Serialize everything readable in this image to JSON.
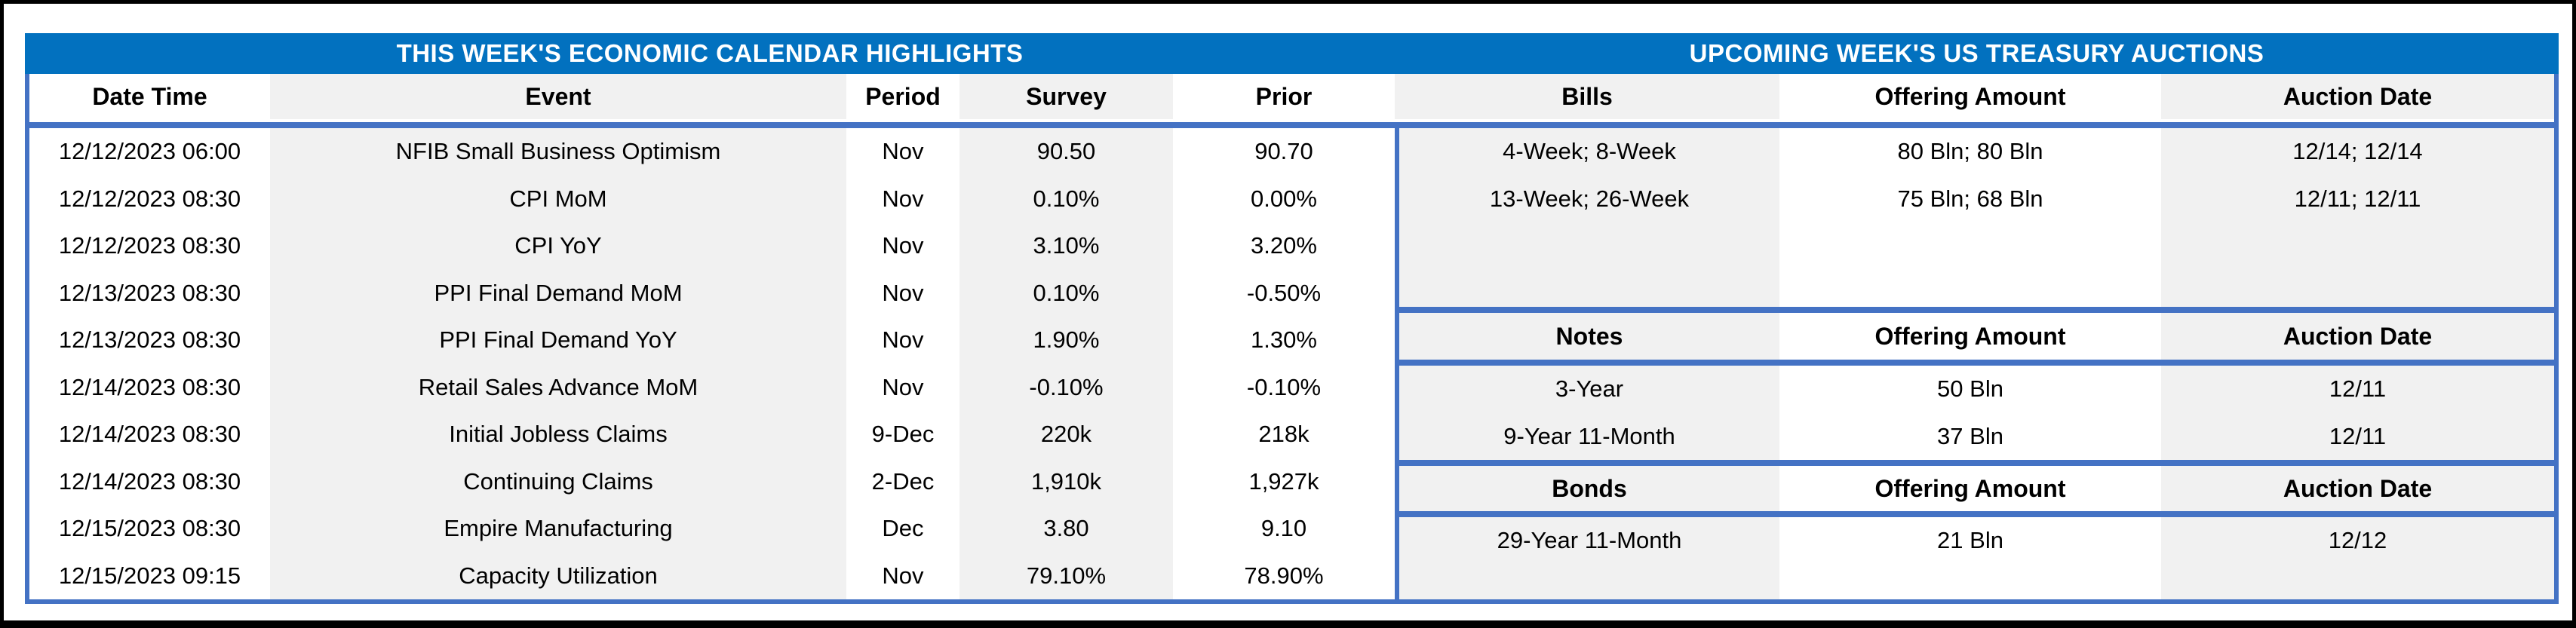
{
  "colors": {
    "band_blue": "#0271BF",
    "border_blue": "#4472C4",
    "stripe_gray": "#F1F1F1",
    "frame_black": "#000000",
    "title_text": "#FFFFFF"
  },
  "calendar": {
    "title": "THIS WEEK'S ECONOMIC CALENDAR HIGHLIGHTS",
    "columns": [
      "Date Time",
      "Event",
      "Period",
      "Survey",
      "Prior"
    ],
    "rows": [
      {
        "date_time": "12/12/2023 06:00",
        "event": "NFIB Small Business Optimism",
        "period": "Nov",
        "survey": "90.50",
        "prior": "90.70"
      },
      {
        "date_time": "12/12/2023 08:30",
        "event": "CPI MoM",
        "period": "Nov",
        "survey": "0.10%",
        "prior": "0.00%"
      },
      {
        "date_time": "12/12/2023 08:30",
        "event": "CPI YoY",
        "period": "Nov",
        "survey": "3.10%",
        "prior": "3.20%"
      },
      {
        "date_time": "12/13/2023 08:30",
        "event": "PPI Final Demand MoM",
        "period": "Nov",
        "survey": "0.10%",
        "prior": "-0.50%"
      },
      {
        "date_time": "12/13/2023 08:30",
        "event": "PPI Final Demand YoY",
        "period": "Nov",
        "survey": "1.90%",
        "prior": "1.30%"
      },
      {
        "date_time": "12/14/2023 08:30",
        "event": "Retail Sales Advance MoM",
        "period": "Nov",
        "survey": "-0.10%",
        "prior": "-0.10%"
      },
      {
        "date_time": "12/14/2023 08:30",
        "event": "Initial Jobless Claims",
        "period": "9-Dec",
        "survey": "220k",
        "prior": "218k"
      },
      {
        "date_time": "12/14/2023 08:30",
        "event": "Continuing Claims",
        "period": "2-Dec",
        "survey": "1,910k",
        "prior": "1,927k"
      },
      {
        "date_time": "12/15/2023 08:30",
        "event": "Empire Manufacturing",
        "period": "Dec",
        "survey": "3.80",
        "prior": "9.10"
      },
      {
        "date_time": "12/15/2023 09:15",
        "event": "Capacity Utilization",
        "period": "Nov",
        "survey": "79.10%",
        "prior": "78.90%"
      }
    ]
  },
  "auctions": {
    "title": "UPCOMING WEEK'S US TREASURY AUCTIONS",
    "sections": [
      {
        "name": "Bills",
        "columns": [
          "Bills",
          "Offering Amount",
          "Auction Date"
        ],
        "rows": [
          {
            "security": "4-Week; 8-Week",
            "offering_amount": "80 Bln; 80 Bln",
            "auction_date": "12/14; 12/14"
          },
          {
            "security": "13-Week; 26-Week",
            "offering_amount": "75 Bln; 68 Bln",
            "auction_date": "12/11; 12/11"
          }
        ]
      },
      {
        "name": "Notes",
        "columns": [
          "Notes",
          "Offering Amount",
          "Auction Date"
        ],
        "rows": [
          {
            "security": "3-Year",
            "offering_amount": "50 Bln",
            "auction_date": "12/11"
          },
          {
            "security": "9-Year 11-Month",
            "offering_amount": "37 Bln",
            "auction_date": "12/11"
          }
        ]
      },
      {
        "name": "Bonds",
        "columns": [
          "Bonds",
          "Offering Amount",
          "Auction Date"
        ],
        "rows": [
          {
            "security": "29-Year 11-Month",
            "offering_amount": "21 Bln",
            "auction_date": "12/12"
          }
        ]
      }
    ]
  }
}
